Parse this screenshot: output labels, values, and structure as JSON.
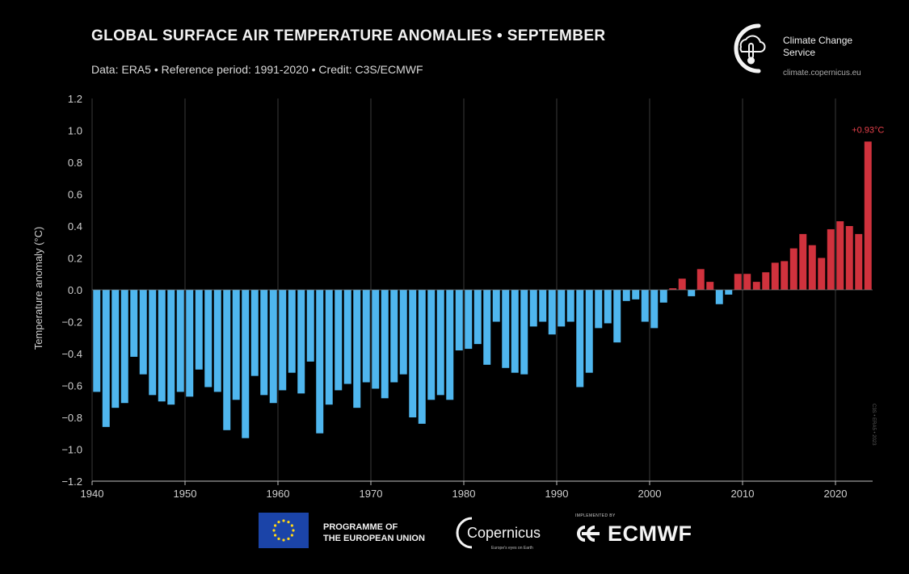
{
  "header": {
    "title": "GLOBAL SURFACE AIR TEMPERATURE ANOMALIES • SEPTEMBER",
    "subtitle": "Data: ERA5 • Reference period: 1991-2020 • Credit: C3S/ECMWF"
  },
  "brand": {
    "name": "Climate Change Service",
    "url": "climate.copernicus.eu"
  },
  "footer": {
    "programme": "PROGRAMME OF\nTHE EUROPEAN UNION",
    "copernicus": "Copernicus",
    "copernicus_tagline": "Europe's eyes on Earth",
    "implemented_by": "IMPLEMENTED BY",
    "ecmwf": "ECMWF"
  },
  "side_code": "C3S • ERA5 • 2023",
  "colors": {
    "background": "#000000",
    "negative": "#4fb6ee",
    "positive": "#d0323d",
    "annotation": "#e8414b",
    "grid": "#3a3a3a"
  },
  "chart_data": {
    "type": "bar",
    "title": "GLOBAL SURFACE AIR TEMPERATURE ANOMALIES • SEPTEMBER",
    "ylabel": "Temperature anomaly (°C)",
    "xlabel": "",
    "ylim": [
      -1.2,
      1.2
    ],
    "xlim": [
      1940,
      2024
    ],
    "yticks": [
      "1.2",
      "1.0",
      "0.8",
      "0.6",
      "0.4",
      "0.2",
      "0.0",
      "−0.2",
      "−0.4",
      "−0.6",
      "−0.8",
      "−1.0",
      "−1.2"
    ],
    "xticks": [
      "1940",
      "1950",
      "1960",
      "1970",
      "1980",
      "1990",
      "2000",
      "2010",
      "2020"
    ],
    "grid": "vertical",
    "annotation": {
      "x": 2023,
      "text": "+0.93°C"
    },
    "x": [
      1940,
      1941,
      1942,
      1943,
      1944,
      1945,
      1946,
      1947,
      1948,
      1949,
      1950,
      1951,
      1952,
      1953,
      1954,
      1955,
      1956,
      1957,
      1958,
      1959,
      1960,
      1961,
      1962,
      1963,
      1964,
      1965,
      1966,
      1967,
      1968,
      1969,
      1970,
      1971,
      1972,
      1973,
      1974,
      1975,
      1976,
      1977,
      1978,
      1979,
      1980,
      1981,
      1982,
      1983,
      1984,
      1985,
      1986,
      1987,
      1988,
      1989,
      1990,
      1991,
      1992,
      1993,
      1994,
      1995,
      1996,
      1997,
      1998,
      1999,
      2000,
      2001,
      2002,
      2003,
      2004,
      2005,
      2006,
      2007,
      2008,
      2009,
      2010,
      2011,
      2012,
      2013,
      2014,
      2015,
      2016,
      2017,
      2018,
      2019,
      2020,
      2021,
      2022,
      2023
    ],
    "values": [
      -0.64,
      -0.86,
      -0.74,
      -0.71,
      -0.42,
      -0.53,
      -0.66,
      -0.7,
      -0.72,
      -0.64,
      -0.67,
      -0.5,
      -0.61,
      -0.64,
      -0.88,
      -0.69,
      -0.93,
      -0.54,
      -0.66,
      -0.71,
      -0.63,
      -0.52,
      -0.65,
      -0.45,
      -0.9,
      -0.72,
      -0.63,
      -0.59,
      -0.74,
      -0.58,
      -0.62,
      -0.68,
      -0.58,
      -0.53,
      -0.8,
      -0.84,
      -0.69,
      -0.66,
      -0.69,
      -0.38,
      -0.37,
      -0.34,
      -0.47,
      -0.2,
      -0.49,
      -0.52,
      -0.53,
      -0.23,
      -0.2,
      -0.28,
      -0.23,
      -0.2,
      -0.61,
      -0.52,
      -0.24,
      -0.21,
      -0.33,
      -0.07,
      -0.06,
      -0.2,
      -0.24,
      -0.08,
      0.01,
      0.07,
      -0.04,
      0.13,
      0.05,
      -0.09,
      -0.03,
      0.1,
      0.1,
      0.05,
      0.11,
      0.17,
      0.18,
      0.26,
      0.35,
      0.28,
      0.2,
      0.38,
      0.43,
      0.4,
      0.35,
      0.93
    ]
  }
}
